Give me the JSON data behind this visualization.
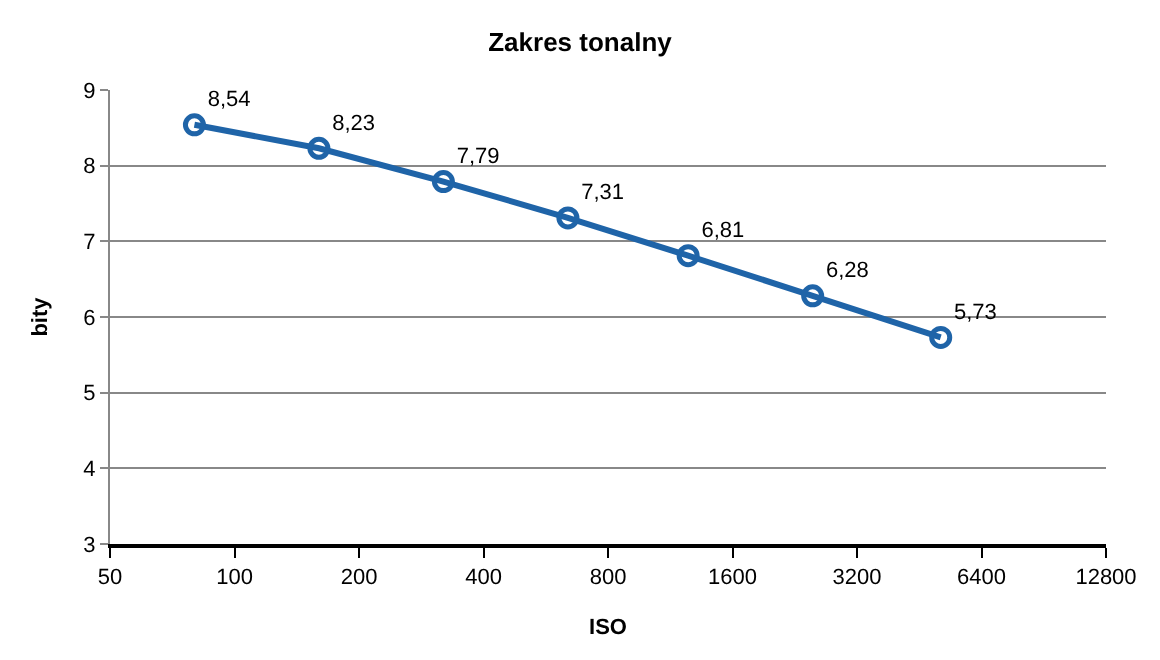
{
  "chart_data": {
    "type": "line",
    "title": "Zakres tonalny",
    "xlabel": "ISO",
    "ylabel": "bity",
    "x": [
      80,
      160,
      320,
      640,
      1250,
      2500,
      5100
    ],
    "series": [
      {
        "color": "#1f64a8",
        "values": [
          8.54,
          8.23,
          7.79,
          7.31,
          6.81,
          6.28,
          5.73
        ],
        "value_labels": [
          "8,54",
          "8,23",
          "7,79",
          "7,31",
          "6,81",
          "6,28",
          "5,73"
        ]
      }
    ],
    "log": "x",
    "xlim": [
      50,
      12800
    ],
    "xticks": [
      50,
      100,
      200,
      400,
      800,
      1600,
      3200,
      6400,
      12800
    ],
    "ylim": [
      3,
      9
    ],
    "yticks": [
      3,
      4,
      5,
      6,
      7,
      8,
      9
    ],
    "grid": "y",
    "legend": false,
    "marker": "circle",
    "line_style": "solid"
  }
}
